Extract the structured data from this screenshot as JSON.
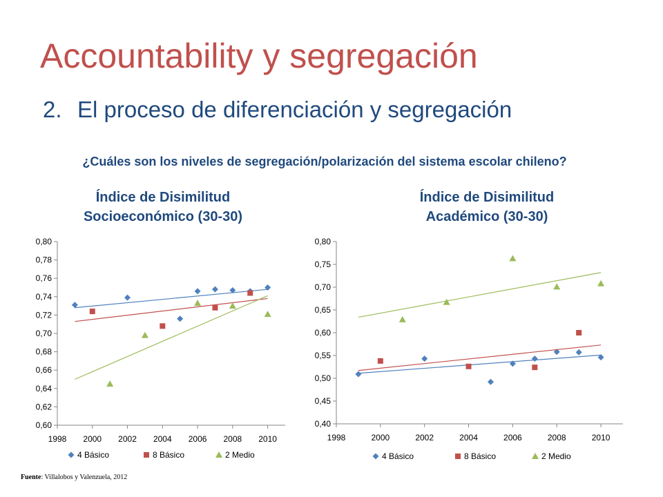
{
  "slide": {
    "title": "Accountability y segregación",
    "subtitle_number": "2.",
    "subtitle_text": "El proceso de diferenciación y segregación",
    "question": "¿Cuáles son los niveles de segregación/polarización del sistema escolar chileno?",
    "source_label": "Fuente",
    "source_text": ": Villalobos y Valenzuela, 2012"
  },
  "colors": {
    "4_basico": "#4f81bd",
    "8_basico": "#c0504d",
    "2_medio": "#9bbb59"
  },
  "chart_data": [
    {
      "type": "scatter",
      "title": "Índice de Disimilitud Socioeconómico (30-30)",
      "title_lines": [
        "Índice de Disimilitud",
        "Socioeconómico (30-30)"
      ],
      "xlim": [
        1998,
        2011
      ],
      "ylim": [
        0.6,
        0.8
      ],
      "x_ticks": [
        1998,
        2000,
        2002,
        2004,
        2006,
        2008,
        2010
      ],
      "y_ticks": [
        0.6,
        0.62,
        0.64,
        0.66,
        0.68,
        0.7,
        0.72,
        0.74,
        0.76,
        0.78,
        0.8
      ],
      "y_tick_labels": [
        "0,60",
        "0,62",
        "0,64",
        "0,66",
        "0,68",
        "0,70",
        "0,72",
        "0,74",
        "0,76",
        "0,78",
        "0,80"
      ],
      "grid": false,
      "legend_position": "bottom",
      "series": [
        {
          "name": "4 Básico",
          "marker": "diamond",
          "color": "#4f81bd",
          "points": [
            [
              1999,
              0.731
            ],
            [
              2002,
              0.739
            ],
            [
              2005,
              0.716
            ],
            [
              2006,
              0.746
            ],
            [
              2007,
              0.748
            ],
            [
              2008,
              0.747
            ],
            [
              2009,
              0.746
            ],
            [
              2010,
              0.75
            ]
          ],
          "trend": [
            [
              1999,
              0.728
            ],
            [
              2010,
              0.748
            ]
          ]
        },
        {
          "name": "8 Básico",
          "marker": "square",
          "color": "#c0504d",
          "points": [
            [
              2000,
              0.724
            ],
            [
              2004,
              0.708
            ],
            [
              2007,
              0.728
            ],
            [
              2009,
              0.744
            ]
          ],
          "trend": [
            [
              1999,
              0.713
            ],
            [
              2010,
              0.738
            ]
          ]
        },
        {
          "name": "2 Medio",
          "marker": "triangle",
          "color": "#9bbb59",
          "points": [
            [
              2001,
              0.645
            ],
            [
              2003,
              0.698
            ],
            [
              2006,
              0.733
            ],
            [
              2008,
              0.73
            ],
            [
              2010,
              0.721
            ]
          ],
          "trend": [
            [
              1999,
              0.65
            ],
            [
              2010,
              0.741
            ]
          ]
        }
      ]
    },
    {
      "type": "scatter",
      "title": "Índice de Disimilitud Académico (30-30)",
      "title_lines": [
        "Índice de Disimilitud",
        "Académico (30-30)"
      ],
      "xlim": [
        1998,
        2011
      ],
      "ylim": [
        0.4,
        0.8
      ],
      "x_ticks": [
        1998,
        2000,
        2002,
        2004,
        2006,
        2008,
        2010
      ],
      "y_ticks": [
        0.4,
        0.45,
        0.5,
        0.55,
        0.6,
        0.65,
        0.7,
        0.75,
        0.8
      ],
      "y_tick_labels": [
        "0,40",
        "0,45",
        "0,50",
        "0,55",
        "0,60",
        "0,65",
        "0,70",
        "0,75",
        "0,80"
      ],
      "grid": false,
      "legend_position": "bottom",
      "series": [
        {
          "name": "4 Básico",
          "marker": "diamond",
          "color": "#4f81bd",
          "points": [
            [
              1999,
              0.509
            ],
            [
              2002,
              0.543
            ],
            [
              2005,
              0.492
            ],
            [
              2006,
              0.532
            ],
            [
              2007,
              0.543
            ],
            [
              2008,
              0.558
            ],
            [
              2009,
              0.557
            ],
            [
              2010,
              0.546
            ]
          ],
          "trend": [
            [
              1999,
              0.511
            ],
            [
              2010,
              0.551
            ]
          ]
        },
        {
          "name": "8 Básico",
          "marker": "square",
          "color": "#c0504d",
          "points": [
            [
              2000,
              0.538
            ],
            [
              2004,
              0.526
            ],
            [
              2007,
              0.524
            ],
            [
              2009,
              0.6
            ]
          ],
          "trend": [
            [
              1999,
              0.517
            ],
            [
              2010,
              0.573
            ]
          ]
        },
        {
          "name": "2 Medio",
          "marker": "triangle",
          "color": "#9bbb59",
          "points": [
            [
              2001,
              0.629
            ],
            [
              2003,
              0.667
            ],
            [
              2006,
              0.763
            ],
            [
              2008,
              0.701
            ],
            [
              2010,
              0.708
            ]
          ],
          "trend": [
            [
              1999,
              0.634
            ],
            [
              2010,
              0.732
            ]
          ]
        }
      ]
    }
  ]
}
